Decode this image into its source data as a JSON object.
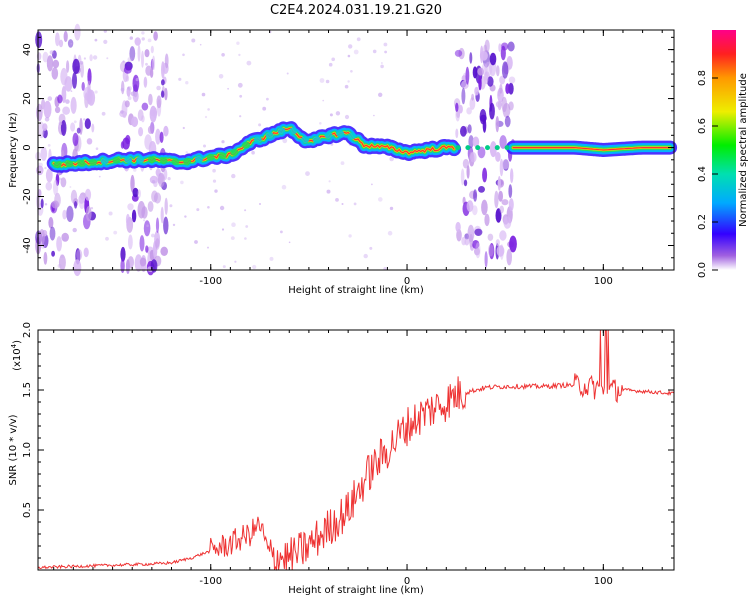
{
  "title": "C2E4.2024.031.19.21.G20",
  "chart_data": [
    {
      "type": "heatmap",
      "xlabel": "Height of straight line (km)",
      "ylabel": "Frequency (Hz)",
      "xlim": [
        -188,
        136
      ],
      "ylim": [
        -50,
        48
      ],
      "xticks": [
        -100,
        0,
        100
      ],
      "xtick_labels": [
        "-100",
        "0",
        "100"
      ],
      "yticks": [
        -40,
        -20,
        0,
        20,
        40
      ],
      "ytick_labels": [
        "-40",
        "-20",
        "0",
        "20",
        "40"
      ],
      "colorbar": {
        "label": "Normalized spectral amplitude",
        "range": [
          0,
          1
        ],
        "ticks": [
          0,
          0.2,
          0.4,
          0.6,
          0.8
        ],
        "tick_labels": [
          "0.0",
          "0.2",
          "0.4",
          "0.6",
          "0.8"
        ],
        "colormap": [
          "#7700aa",
          "#3300ff",
          "#00aaff",
          "#00e0a0",
          "#00ee00",
          "#eeee00",
          "#ff9900",
          "#ff0000",
          "#ff0080"
        ]
      },
      "ridge": {
        "x": [
          -178,
          -160,
          -145,
          -130,
          -115,
          -100,
          -90,
          -80,
          -70,
          -60,
          -50,
          -40,
          -30,
          -22,
          -10,
          0,
          10,
          20,
          25,
          40,
          55,
          70,
          85,
          100,
          120,
          134
        ],
        "y": [
          -7,
          -6,
          -5,
          -5,
          -6,
          -4,
          -3,
          2,
          5,
          8,
          2,
          5,
          6,
          1,
          0,
          -2,
          -1,
          0,
          0,
          0,
          0,
          0,
          0,
          -1,
          0,
          0
        ]
      },
      "noise_bands": [
        [
          -188,
          -160
        ],
        [
          -145,
          -122
        ],
        [
          25,
          54
        ]
      ]
    },
    {
      "type": "line",
      "xlabel": "Height of straight line (km)",
      "ylabel": "SNR (10 * v/v)",
      "multiplier": "(x10",
      "multiplier_exp": "4",
      "xlim": [
        -188,
        136
      ],
      "ylim": [
        0,
        2.0
      ],
      "xticks": [
        -100,
        0,
        100
      ],
      "xtick_labels": [
        "-100",
        "0",
        "100"
      ],
      "yticks": [
        0.5,
        1.0,
        1.5,
        2.0
      ],
      "ytick_labels": [
        "0.5",
        "1.0",
        "1.5",
        "2.0"
      ],
      "color": "#ee3333",
      "series": [
        {
          "x": [
            -188,
            -170,
            -150,
            -130,
            -120,
            -110,
            -100,
            -90,
            -80,
            -75,
            -70,
            -60,
            -50,
            -40,
            -30,
            -25,
            -20,
            -15,
            -10,
            -5,
            0,
            5,
            10,
            15,
            20,
            25,
            30,
            40,
            50,
            60,
            70,
            80,
            90,
            95,
            100,
            105,
            110,
            120,
            136
          ],
          "y": [
            0.02,
            0.03,
            0.04,
            0.05,
            0.06,
            0.1,
            0.16,
            0.22,
            0.3,
            0.38,
            0.12,
            0.1,
            0.2,
            0.35,
            0.5,
            0.65,
            0.8,
            0.9,
            1.0,
            1.1,
            1.2,
            1.26,
            1.32,
            1.36,
            1.4,
            1.46,
            1.48,
            1.52,
            1.53,
            1.53,
            1.53,
            1.54,
            1.54,
            1.52,
            1.5,
            1.5,
            1.5,
            1.49,
            1.47
          ]
        }
      ]
    }
  ]
}
